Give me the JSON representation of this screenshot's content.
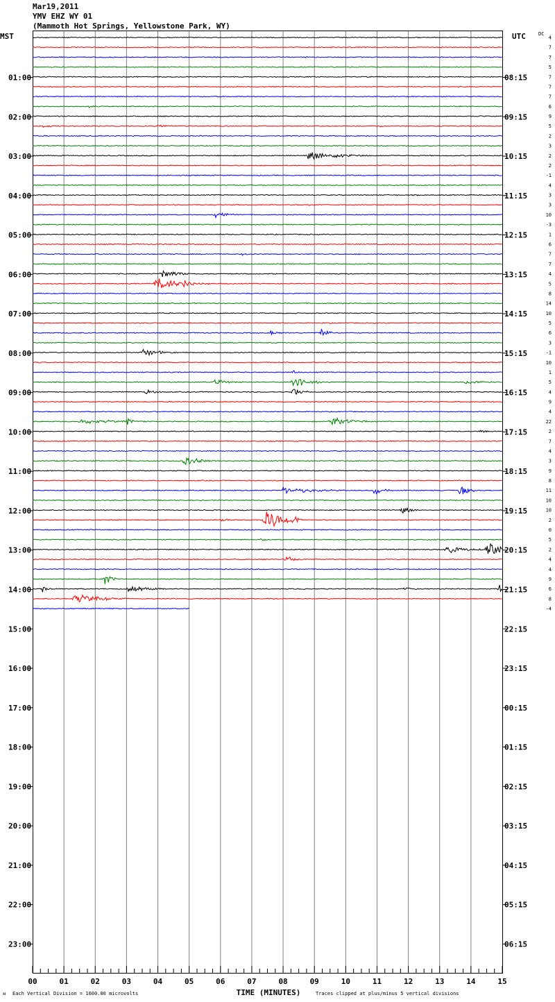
{
  "header": {
    "date": "Mar19,2011",
    "station": "YMV EHZ WY 01",
    "location": "(Mammoth Hot Springs, Yellowstone Park, WY)"
  },
  "labels": {
    "left_tz": "MST",
    "right_tz": "UTC",
    "dc": "DC",
    "xlabel": "TIME (MINUTES)",
    "scale_note": "Each Vertical Division = 1600.00 microvolts",
    "clip_note": "Traces clipped at plus/minus 5 vertical divisions",
    "logo_mark": "ᴍ"
  },
  "colors": {
    "cycle": [
      "#000000",
      "#ff0000",
      "#0000ff",
      "#008000"
    ],
    "grid": "#808080"
  },
  "chart_data": {
    "type": "line",
    "title": "",
    "xlabel": "TIME (MINUTES)",
    "xlim": [
      0,
      15
    ],
    "x_ticks": [
      "00",
      "01",
      "02",
      "03",
      "04",
      "05",
      "06",
      "07",
      "08",
      "09",
      "10",
      "11",
      "12",
      "13",
      "14",
      "15"
    ],
    "left_hour_labels": [
      "01:00",
      "02:00",
      "03:00",
      "04:00",
      "05:00",
      "06:00",
      "07:00",
      "08:00",
      "09:00",
      "10:00",
      "11:00",
      "12:00",
      "13:00",
      "14:00",
      "15:00",
      "16:00",
      "17:00",
      "18:00",
      "19:00",
      "20:00",
      "21:00",
      "22:00",
      "23:00"
    ],
    "right_hour_labels": [
      "08:15",
      "09:15",
      "10:15",
      "11:15",
      "12:15",
      "13:15",
      "14:15",
      "15:15",
      "16:15",
      "17:15",
      "18:15",
      "19:15",
      "20:15",
      "21:15",
      "22:15",
      "23:15",
      "00:15",
      "01:15",
      "02:15",
      "03:15",
      "04:15",
      "05:15",
      "06:15"
    ],
    "trace_count": 59,
    "last_trace_end_minute": 5,
    "dc_offsets": [
      4,
      7,
      7,
      5,
      7,
      7,
      7,
      6,
      9,
      5,
      2,
      3,
      2,
      2,
      -1,
      4,
      3,
      3,
      10,
      -3,
      1,
      6,
      7,
      7,
      4,
      5,
      8,
      14,
      10,
      5,
      6,
      3,
      -1,
      10,
      1,
      5,
      4,
      9,
      4,
      22,
      2,
      7,
      4,
      3,
      9,
      8,
      11,
      10,
      10,
      2,
      0,
      5,
      2,
      4,
      4,
      9,
      6,
      8,
      -4
    ],
    "events": [
      {
        "trace": 0,
        "minute": 0.4,
        "amp": 1.5,
        "dur": 0.2
      },
      {
        "trace": 2,
        "minute": 8.7,
        "amp": 1.8,
        "dur": 0.3
      },
      {
        "trace": 7,
        "minute": 1.8,
        "amp": 2.5,
        "dur": 0.6
      },
      {
        "trace": 8,
        "minute": 14.2,
        "amp": 2,
        "dur": 0.6
      },
      {
        "trace": 9,
        "minute": 0.3,
        "amp": 3,
        "dur": 0.6
      },
      {
        "trace": 9,
        "minute": 3.9,
        "amp": 3,
        "dur": 1.0
      },
      {
        "trace": 9,
        "minute": 11.1,
        "amp": 2.5,
        "dur": 0.3
      },
      {
        "trace": 12,
        "minute": 8.8,
        "amp": 7,
        "dur": 2.2
      },
      {
        "trace": 17,
        "minute": 8.8,
        "amp": 2.5,
        "dur": 0.2
      },
      {
        "trace": 18,
        "minute": 5.8,
        "amp": 6,
        "dur": 0.9
      },
      {
        "trace": 22,
        "minute": 6.7,
        "amp": 3,
        "dur": 0.6
      },
      {
        "trace": 24,
        "minute": 4.1,
        "amp": 7,
        "dur": 1.2
      },
      {
        "trace": 25,
        "minute": 3.9,
        "amp": 11,
        "dur": 1.8
      },
      {
        "trace": 25,
        "minute": 4.8,
        "amp": 7,
        "dur": 0.5
      },
      {
        "trace": 30,
        "minute": 7.6,
        "amp": 3,
        "dur": 0.8
      },
      {
        "trace": 30,
        "minute": 9.2,
        "amp": 7,
        "dur": 0.6
      },
      {
        "trace": 32,
        "minute": 3.5,
        "amp": 6,
        "dur": 1.2
      },
      {
        "trace": 34,
        "minute": 8.3,
        "amp": 4,
        "dur": 0.3
      },
      {
        "trace": 35,
        "minute": 5.8,
        "amp": 4,
        "dur": 1.2
      },
      {
        "trace": 35,
        "minute": 8.3,
        "amp": 9,
        "dur": 1.2
      },
      {
        "trace": 35,
        "minute": 13.8,
        "amp": 4,
        "dur": 1.5
      },
      {
        "trace": 36,
        "minute": 3.6,
        "amp": 6,
        "dur": 0.5
      },
      {
        "trace": 36,
        "minute": 8.3,
        "amp": 9,
        "dur": 0.5
      },
      {
        "trace": 39,
        "minute": 1.5,
        "amp": 4,
        "dur": 2.5
      },
      {
        "trace": 39,
        "minute": 3.0,
        "amp": 9,
        "dur": 0.3
      },
      {
        "trace": 39,
        "minute": 9.5,
        "amp": 9,
        "dur": 1.2
      },
      {
        "trace": 40,
        "minute": 14.3,
        "amp": 3,
        "dur": 0.6
      },
      {
        "trace": 43,
        "minute": 4.8,
        "amp": 8,
        "dur": 1.0
      },
      {
        "trace": 46,
        "minute": 8.0,
        "amp": 5,
        "dur": 2.5
      },
      {
        "trace": 46,
        "minute": 10.9,
        "amp": 7,
        "dur": 0.6
      },
      {
        "trace": 46,
        "minute": 13.6,
        "amp": 10,
        "dur": 0.6
      },
      {
        "trace": 48,
        "minute": 11.8,
        "amp": 7,
        "dur": 0.5
      },
      {
        "trace": 49,
        "minute": 7.4,
        "amp": 18,
        "dur": 1.2
      },
      {
        "trace": 49,
        "minute": 8.4,
        "amp": 9,
        "dur": 0.2
      },
      {
        "trace": 49,
        "minute": 6.0,
        "amp": 4,
        "dur": 0.6
      },
      {
        "trace": 51,
        "minute": 7.3,
        "amp": 4,
        "dur": 0.3
      },
      {
        "trace": 52,
        "minute": 13.2,
        "amp": 7,
        "dur": 1.2
      },
      {
        "trace": 52,
        "minute": 14.5,
        "amp": 14,
        "dur": 0.8
      },
      {
        "trace": 53,
        "minute": 8.1,
        "amp": 5,
        "dur": 0.6
      },
      {
        "trace": 55,
        "minute": 2.3,
        "amp": 12,
        "dur": 0.4
      },
      {
        "trace": 56,
        "minute": 0.3,
        "amp": 6,
        "dur": 0.4
      },
      {
        "trace": 56,
        "minute": 3.0,
        "amp": 7,
        "dur": 1.2
      },
      {
        "trace": 56,
        "minute": 11.9,
        "amp": 5,
        "dur": 0.4
      },
      {
        "trace": 56,
        "minute": 14.9,
        "amp": 8,
        "dur": 0.2
      },
      {
        "trace": 57,
        "minute": 1.3,
        "amp": 8,
        "dur": 1.8
      }
    ]
  }
}
